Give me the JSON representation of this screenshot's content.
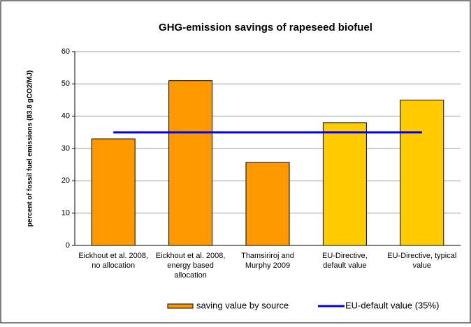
{
  "chart_data": {
    "type": "bar",
    "title": "GHG-emission savings of rapeseed biofuel",
    "y_label": "percent of fossil fuel emissions (83.8 gCO2/MJ)",
    "categories": [
      "Eickhout et al. 2008, no allocation",
      "Eickhout et al. 2008, energy based allocation",
      "Thamsiriroj and Murphy 2009",
      "EU-Directive, default value",
      "EU-Directive, typical value"
    ],
    "series": [
      {
        "name": "saving value by source",
        "type": "bar",
        "color": "#ff9900",
        "colors": [
          "#ff9900",
          "#ff9900",
          "#ff9900",
          "#ffcc00",
          "#ffcc00"
        ],
        "values": [
          33,
          51,
          25.7,
          38,
          45
        ]
      },
      {
        "name": "EU-default value (35%)",
        "type": "line",
        "color": "#0000dd",
        "values": [
          35,
          35,
          35,
          35,
          35
        ]
      }
    ],
    "ylim": [
      0,
      60
    ],
    "yticks": [
      0,
      10,
      20,
      30,
      40,
      50,
      60
    ],
    "grid": true,
    "legend": "bottom"
  }
}
